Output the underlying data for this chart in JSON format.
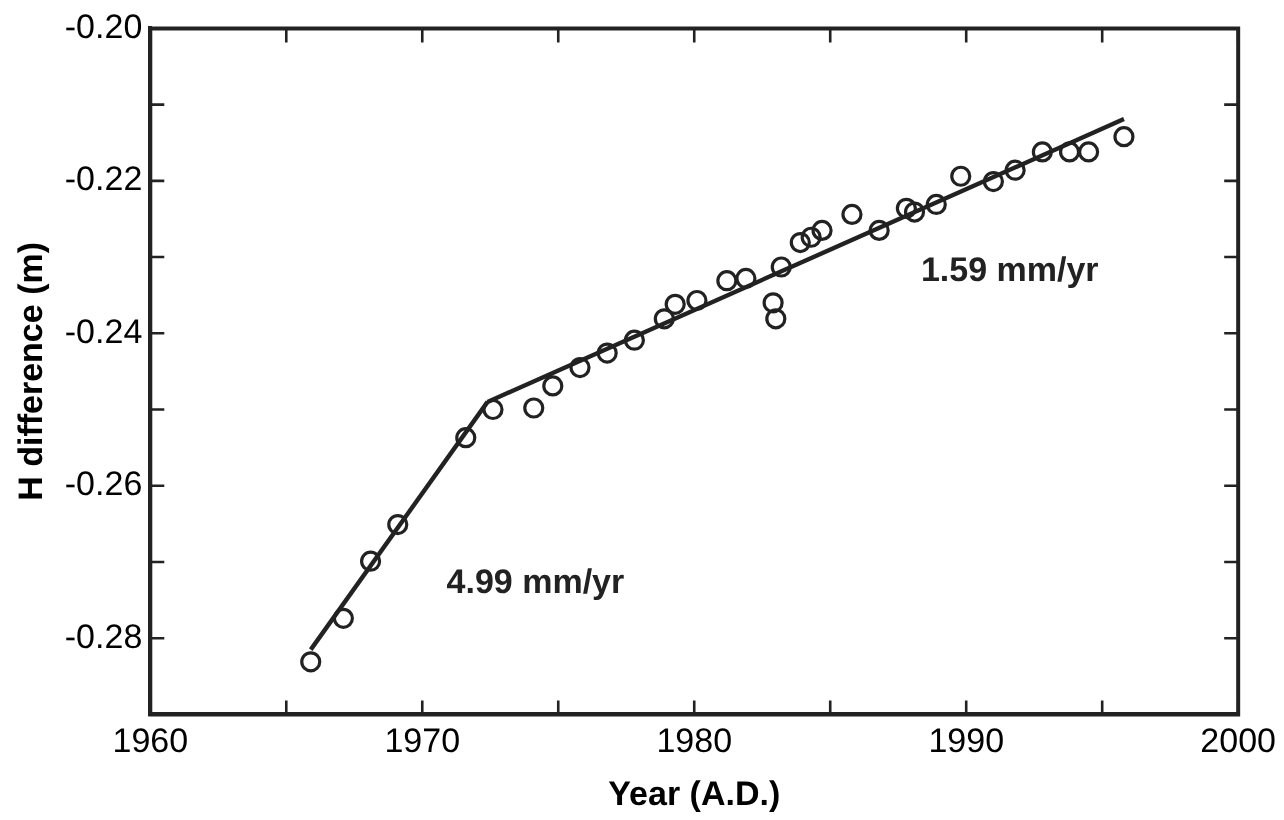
{
  "chart_data": {
    "type": "scatter",
    "xlabel": "Year (A.D.)",
    "ylabel": "H difference (m)",
    "xlim": [
      1960,
      2000
    ],
    "ylim": [
      -0.29,
      -0.2
    ],
    "xticks": [
      1960,
      {
        "value": 1965,
        "label": null
      },
      1970,
      {
        "value": 1975,
        "label": null
      },
      1980,
      {
        "value": 1985,
        "label": null
      },
      1990,
      {
        "value": 1995,
        "label": null
      },
      2000
    ],
    "yticks": [
      {
        "value": -0.29,
        "label": null
      },
      -0.28,
      {
        "value": -0.27,
        "label": null
      },
      -0.26,
      {
        "value": -0.25,
        "label": null
      },
      -0.24,
      {
        "value": -0.23,
        "label": null
      },
      -0.22,
      {
        "value": -0.21,
        "label": null
      },
      {
        "value": -0.2,
        "label": "-0.20"
      }
    ],
    "grid": false,
    "legend": false,
    "series": [
      {
        "marker": "circle",
        "color": "#222222",
        "x": [
          1965.9,
          1967.1,
          1968.1,
          1969.1,
          1971.6,
          1972.6,
          1974.1,
          1974.8,
          1975.8,
          1976.8,
          1977.8,
          1978.9,
          1979.3,
          1980.1,
          1981.2,
          1981.9,
          1982.9,
          1983.0,
          1983.2,
          1983.9,
          1984.3,
          1984.7,
          1985.8,
          1986.8,
          1987.8,
          1988.1,
          1988.9,
          1989.8,
          1991.0,
          1991.8,
          1992.8,
          1993.8,
          1994.5,
          1995.8
        ],
        "values": [
          -0.2831,
          -0.2774,
          -0.2699,
          -0.2651,
          -0.2537,
          -0.25,
          -0.2498,
          -0.2469,
          -0.2445,
          -0.2426,
          -0.2409,
          -0.2381,
          -0.2362,
          -0.2357,
          -0.2331,
          -0.2328,
          -0.236,
          -0.2381,
          -0.2313,
          -0.2281,
          -0.2274,
          -0.2265,
          -0.2244,
          -0.2265,
          -0.2236,
          -0.2241,
          -0.2231,
          -0.2194,
          -0.2201,
          -0.2186,
          -0.2162,
          -0.2162,
          -0.2162,
          -0.2142
        ]
      },
      {
        "type": "line",
        "marker": "none",
        "color": "#222222",
        "x": [
          1965.9,
          1972.4
        ],
        "values": [
          -0.2815,
          -0.249
        ]
      },
      {
        "type": "line",
        "marker": "none",
        "color": "#222222",
        "x": [
          1972.4,
          1995.8
        ],
        "values": [
          -0.249,
          -0.2119
        ]
      }
    ],
    "annotations": [
      "4.99 mm/yr",
      "1.59 mm/yr"
    ]
  }
}
